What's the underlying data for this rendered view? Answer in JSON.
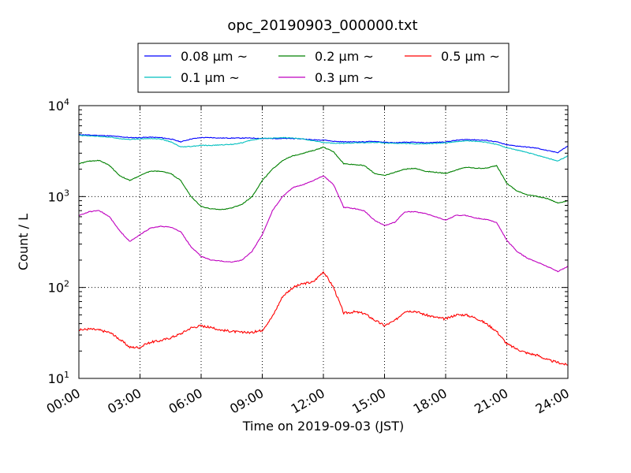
{
  "chart_data": {
    "type": "line",
    "title": "opc_20190903_000000.txt",
    "xlabel": "Time on 2019-09-03 (JST)",
    "ylabel": "Count / L",
    "yscale": "log",
    "xlim": [
      "00:00",
      "24:00"
    ],
    "ylim": [
      10,
      10000
    ],
    "x_ticks": [
      "00:00",
      "03:00",
      "06:00",
      "09:00",
      "12:00",
      "15:00",
      "18:00",
      "21:00",
      "24:00"
    ],
    "y_ticks": [
      {
        "value": 10,
        "base": "10",
        "exp": "1"
      },
      {
        "value": 100,
        "base": "10",
        "exp": "2"
      },
      {
        "value": 1000,
        "base": "10",
        "exp": "3"
      },
      {
        "value": 10000,
        "base": "10",
        "exp": "4"
      }
    ],
    "grid": true,
    "legend_position": "top-center",
    "x_hours": [
      0,
      0.5,
      1,
      1.5,
      2,
      2.5,
      3,
      3.5,
      4,
      4.5,
      5,
      5.5,
      6,
      6.5,
      7,
      7.5,
      8,
      8.5,
      9,
      9.5,
      10,
      10.5,
      11,
      11.5,
      12,
      12.5,
      13,
      13.5,
      14,
      14.5,
      15,
      15.5,
      16,
      16.5,
      17,
      17.5,
      18,
      18.5,
      19,
      19.5,
      20,
      20.5,
      21,
      21.5,
      22,
      22.5,
      23,
      23.5,
      24
    ],
    "series": [
      {
        "name": "0.08 μm ~",
        "color": "#0000ff",
        "values": [
          4800,
          4750,
          4700,
          4650,
          4550,
          4450,
          4450,
          4500,
          4450,
          4300,
          4000,
          4300,
          4450,
          4450,
          4400,
          4400,
          4400,
          4400,
          4350,
          4350,
          4350,
          4350,
          4300,
          4200,
          4200,
          4050,
          4000,
          4000,
          4000,
          4050,
          3950,
          3900,
          3950,
          3950,
          3900,
          3950,
          4000,
          4150,
          4250,
          4200,
          4150,
          4000,
          3700,
          3600,
          3500,
          3400,
          3200,
          3050,
          3600
        ]
      },
      {
        "name": "0.1 μm ~",
        "color": "#00bfbf",
        "values": [
          4700,
          4650,
          4600,
          4500,
          4350,
          4250,
          4300,
          4350,
          4300,
          4000,
          3500,
          3550,
          3650,
          3650,
          3700,
          3750,
          3900,
          4200,
          4350,
          4400,
          4450,
          4400,
          4300,
          4100,
          3950,
          3850,
          3850,
          3900,
          3900,
          3950,
          3900,
          3850,
          3850,
          3800,
          3800,
          3850,
          3900,
          4000,
          4100,
          4050,
          3950,
          3750,
          3450,
          3250,
          3050,
          2850,
          2650,
          2450,
          2800
        ]
      },
      {
        "name": "0.2 μm ~",
        "color": "#008000",
        "values": [
          2300,
          2450,
          2500,
          2200,
          1700,
          1500,
          1700,
          1900,
          1900,
          1800,
          1500,
          1000,
          780,
          730,
          720,
          750,
          820,
          1000,
          1500,
          2000,
          2500,
          2800,
          3000,
          3200,
          3500,
          3100,
          2300,
          2250,
          2200,
          1800,
          1700,
          1850,
          2000,
          2050,
          1900,
          1850,
          1800,
          1950,
          2100,
          2050,
          2050,
          2200,
          1400,
          1150,
          1050,
          1000,
          950,
          850,
          900
        ]
      },
      {
        "name": "0.3 μm ~",
        "color": "#bf00bf",
        "values": [
          620,
          680,
          700,
          600,
          420,
          320,
          380,
          450,
          470,
          460,
          410,
          280,
          220,
          200,
          195,
          190,
          200,
          250,
          380,
          700,
          1000,
          1250,
          1350,
          1500,
          1700,
          1350,
          760,
          740,
          700,
          550,
          480,
          520,
          680,
          680,
          650,
          600,
          550,
          620,
          620,
          580,
          560,
          520,
          330,
          250,
          210,
          190,
          170,
          150,
          170
        ]
      },
      {
        "name": "0.5 μm ~",
        "color": "#ff0000",
        "values": [
          34,
          35,
          34,
          32,
          27,
          22,
          22,
          25,
          26,
          28,
          31,
          36,
          38,
          36,
          34,
          33,
          32,
          32,
          34,
          48,
          80,
          100,
          110,
          115,
          150,
          100,
          52,
          54,
          52,
          44,
          38,
          43,
          55,
          55,
          50,
          47,
          45,
          50,
          50,
          46,
          40,
          33,
          24,
          21,
          19,
          18,
          16,
          15,
          14
        ]
      }
    ]
  }
}
